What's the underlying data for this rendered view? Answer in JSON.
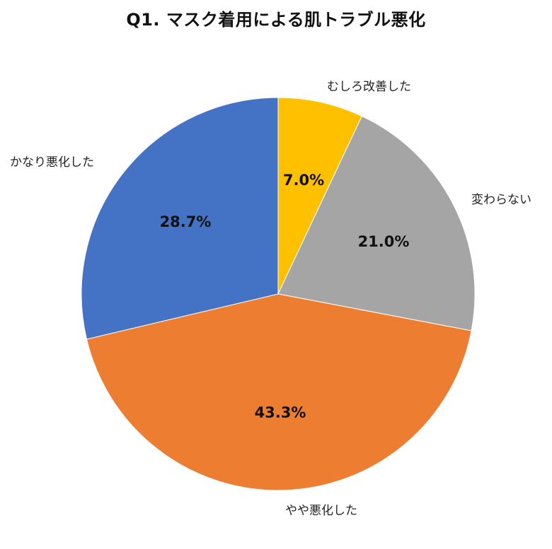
{
  "chart_data": {
    "type": "pie",
    "title": "Q1. マスク着用による肌トラブル悪化",
    "start_angle": "12 o'clock, clockwise",
    "legend": "none (category labels placed outside slices)",
    "slices": [
      {
        "label": "むしろ改善した",
        "value": 7.0,
        "value_label": "7.0%",
        "color": "#FFC000"
      },
      {
        "label": "変わらない",
        "value": 21.0,
        "value_label": "21.0%",
        "color": "#A5A5A5"
      },
      {
        "label": "やや悪化した",
        "value": 43.3,
        "value_label": "43.3%",
        "color": "#ED7D31"
      },
      {
        "label": "かなり悪化した",
        "value": 28.7,
        "value_label": "28.7%",
        "color": "#4472C4"
      }
    ],
    "categories": [
      "むしろ改善した",
      "変わらない",
      "やや悪化した",
      "かなり悪化した"
    ],
    "values": [
      7.0,
      21.0,
      43.3,
      28.7
    ]
  },
  "labels": {
    "title": "Q1. マスク着用による肌トラブル悪化",
    "cat_improved": "むしろ改善した",
    "cat_unchanged": "変わらない",
    "cat_slightly_worse": "やや悪化した",
    "cat_much_worse": "かなり悪化した",
    "pct_improved": "7.0%",
    "pct_unchanged": "21.0%",
    "pct_slightly_worse": "43.3%",
    "pct_much_worse": "28.7%"
  }
}
